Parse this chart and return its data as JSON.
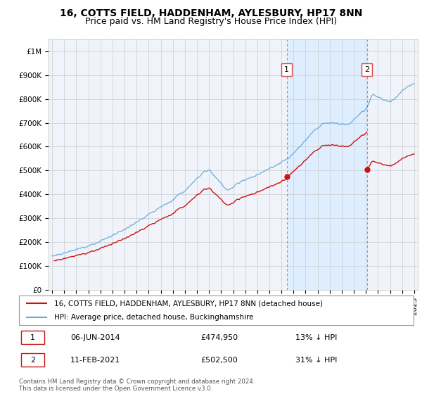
{
  "title": "16, COTTS FIELD, HADDENHAM, AYLESBURY, HP17 8NN",
  "subtitle": "Price paid vs. HM Land Registry's House Price Index (HPI)",
  "ylim": [
    0,
    1050000
  ],
  "yticks": [
    0,
    100000,
    200000,
    300000,
    400000,
    500000,
    600000,
    700000,
    800000,
    900000,
    1000000
  ],
  "ytick_labels": [
    "£0",
    "£100K",
    "£200K",
    "£300K",
    "£400K",
    "£500K",
    "£600K",
    "£700K",
    "£800K",
    "£900K",
    "£1M"
  ],
  "hpi_color": "#6aabdc",
  "price_color": "#cc1111",
  "fill_color": "#ddeeff",
  "vline_color": "#dd4444",
  "background_color": "#ffffff",
  "grid_color": "#cccccc",
  "sale1_t": 2014.44,
  "sale1_price": 474950,
  "sale2_t": 2021.09,
  "sale2_price": 502500,
  "sale0_t": 1995.1,
  "sale0_price": 120000,
  "legend_line1": "16, COTTS FIELD, HADDENHAM, AYLESBURY, HP17 8NN (detached house)",
  "legend_line2": "HPI: Average price, detached house, Buckinghamshire",
  "annotation1_date": "06-JUN-2014",
  "annotation1_price": "£474,950",
  "annotation1_pct": "13% ↓ HPI",
  "annotation2_date": "11-FEB-2021",
  "annotation2_price": "£502,500",
  "annotation2_pct": "31% ↓ HPI",
  "footer": "Contains HM Land Registry data © Crown copyright and database right 2024.\nThis data is licensed under the Open Government Licence v3.0.",
  "title_fontsize": 10,
  "subtitle_fontsize": 9,
  "tick_fontsize": 7.5
}
